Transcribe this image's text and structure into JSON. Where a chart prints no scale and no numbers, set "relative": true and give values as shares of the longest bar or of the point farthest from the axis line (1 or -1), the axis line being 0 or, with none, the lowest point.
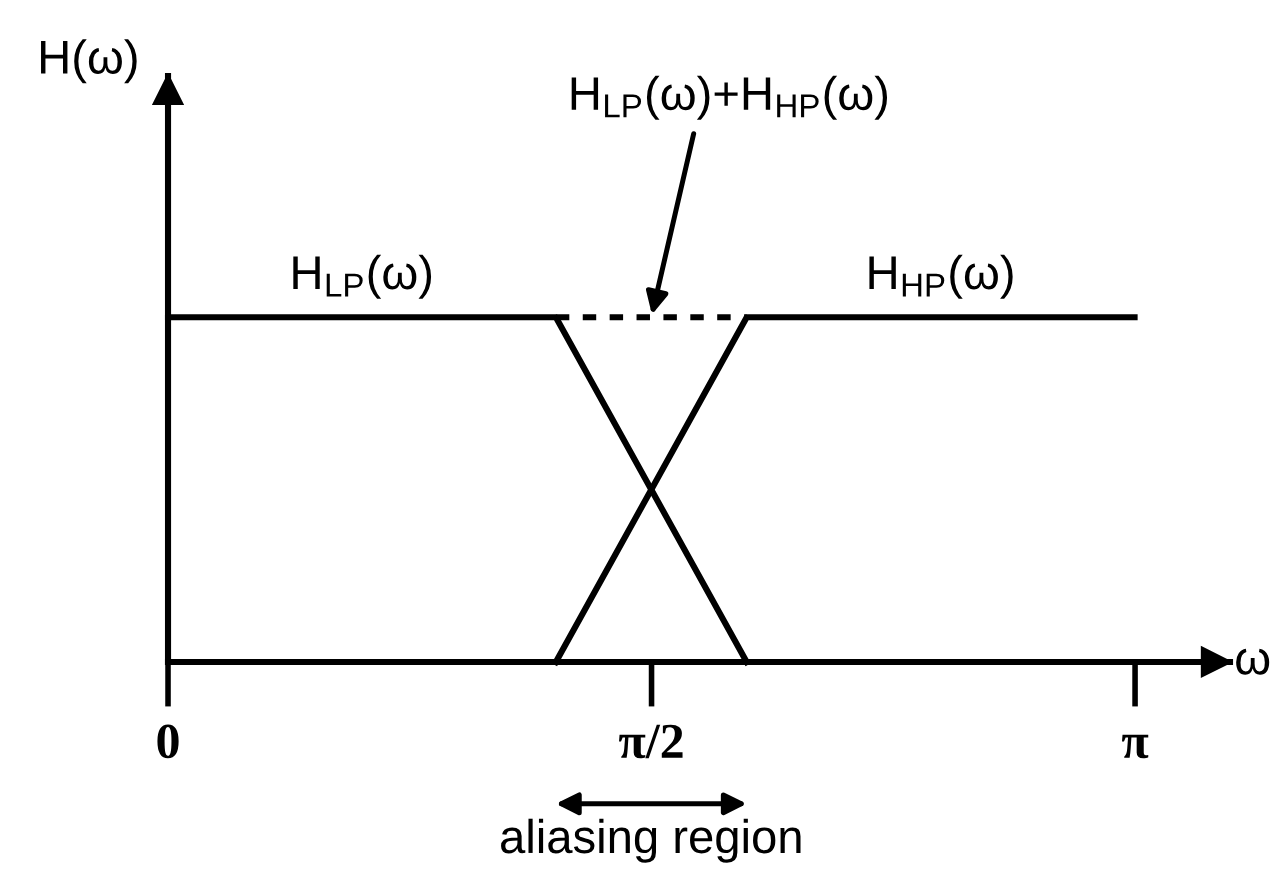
{
  "chart_data": {
    "type": "line",
    "xlabel": "ω",
    "ylabel": "H(ω)",
    "relative": true,
    "xlim": [
      0,
      3.45
    ],
    "xticks": [
      0,
      {
        "value": 1.5708,
        "label": "π/2"
      },
      {
        "value": 3.1416,
        "label": "π"
      }
    ],
    "series": [
      {
        "name": "H$_{LP}$(ω)",
        "color": "#000000",
        "x": [
          0,
          1.26,
          1.88
        ],
        "values": [
          1,
          1,
          0
        ]
      },
      {
        "name": "H$_{HP}$(ω)",
        "color": "#000000",
        "x": [
          1.26,
          1.88,
          3.14
        ],
        "values": [
          0,
          1,
          1
        ]
      },
      {
        "name": "H$_{LP}$(ω)+H$_{HP}$(ω)",
        "color": "#000000",
        "line_style": "dashed",
        "x": [
          1.26,
          1.88
        ],
        "values": [
          1,
          1
        ]
      }
    ],
    "annotations": [
      "aliasing region"
    ]
  }
}
